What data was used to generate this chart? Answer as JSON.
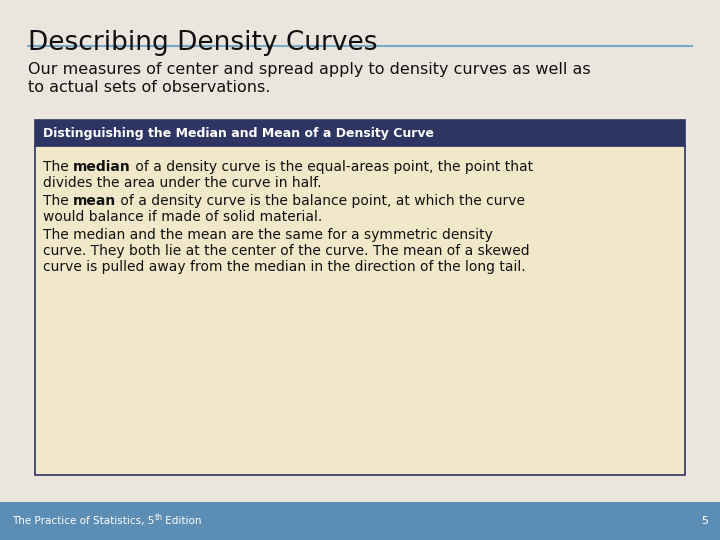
{
  "title": "Describing Density Curves",
  "subtitle_line1": "Our measures of center and spread apply to density curves as well as",
  "subtitle_line2": "to actual sets of observations.",
  "box_header": "Distinguishing the Median and Mean of a Density Curve",
  "box_header_bg": "#2E3563",
  "box_header_color": "#FFFFFF",
  "box_body_bg": "#F0E8C8",
  "box_border_color": "#2E3563",
  "para1_pre": "The ",
  "para1_bold": "median",
  "para1_post": " of a density curve is the equal-areas point, the point that",
  "para1_line2": "divides the area under the curve in half.",
  "para2_pre": "The ",
  "para2_bold": "mean",
  "para2_post": " of a density curve is the balance point, at which the curve",
  "para2_line2": "would balance if made of solid material.",
  "para3_line1": "The median and the mean are the same for a symmetric density",
  "para3_line2": "curve. They both lie at the center of the curve. The mean of a skewed",
  "para3_line3": "curve is pulled away from the median in the direction of the long tail.",
  "footer_text": "The Practice of Statistics, 5",
  "footer_super": "th",
  "footer_end": " Edition",
  "footer_num": "5",
  "bg_color": "#EAE6DE",
  "title_color": "#111111",
  "footer_bg": "#5B8DB5",
  "footer_text_color": "#FFFFFF",
  "title_underline_color": "#7AAAC8",
  "box_body_text": "#111111"
}
